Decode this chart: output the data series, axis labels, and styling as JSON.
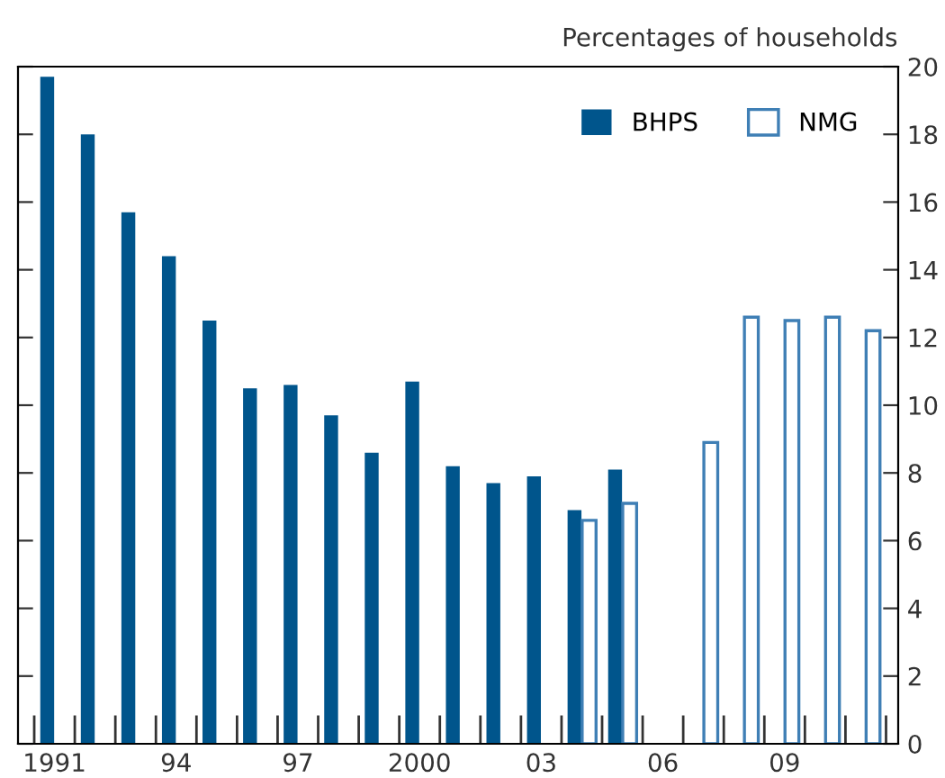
{
  "chart_data": {
    "type": "bar",
    "ylabel": "Percentages of households",
    "categories": [
      "1991",
      null,
      null,
      "94",
      null,
      null,
      "97",
      null,
      null,
      "2000",
      null,
      null,
      "03",
      null,
      null,
      "06",
      null,
      null,
      "09",
      null,
      null
    ],
    "series": [
      {
        "name": "BHPS",
        "color": "#00558c",
        "values": [
          19.7,
          18.0,
          15.7,
          14.4,
          12.5,
          10.5,
          10.6,
          9.7,
          8.6,
          10.7,
          8.2,
          7.7,
          7.9,
          6.9,
          8.1,
          null,
          null,
          null,
          null,
          null,
          null
        ]
      },
      {
        "name": "NMG",
        "color": "#3f7fb5",
        "values": [
          null,
          null,
          null,
          null,
          null,
          null,
          null,
          null,
          null,
          null,
          null,
          null,
          null,
          6.6,
          7.1,
          null,
          8.9,
          12.6,
          12.5,
          12.6,
          12.2
        ]
      }
    ],
    "ylim": [
      0,
      20
    ],
    "yticks": [
      0,
      2,
      4,
      6,
      8,
      10,
      12,
      14,
      16,
      18,
      20
    ],
    "legend": "top right",
    "grid": false
  }
}
